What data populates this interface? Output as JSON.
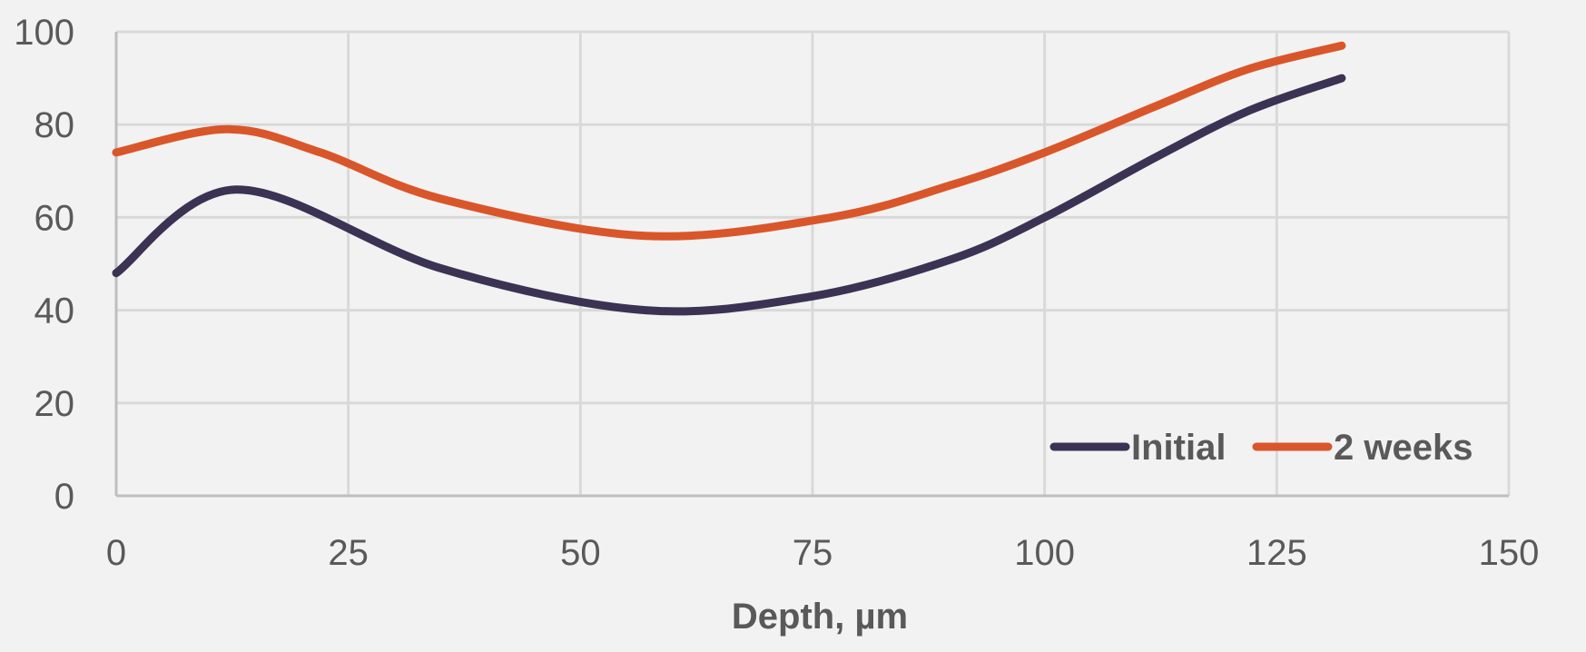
{
  "chart_data": {
    "type": "line",
    "title": "",
    "xlabel": "Depth, µm",
    "ylabel": "",
    "xlim": [
      0,
      150
    ],
    "ylim": [
      0,
      100
    ],
    "x_ticks": [
      0,
      25,
      50,
      75,
      100,
      125,
      150
    ],
    "y_ticks": [
      0,
      20,
      40,
      60,
      80,
      100
    ],
    "grid": true,
    "legend_position": "bottom-right",
    "smooth": true,
    "series": [
      {
        "name": "Initial",
        "color": "#3b3254",
        "x": [
          0,
          13,
          35,
          57,
          75,
          90,
          100,
          112,
          122,
          132
        ],
        "y": [
          48,
          66,
          49,
          40,
          43,
          51,
          60,
          73,
          83,
          90
        ]
      },
      {
        "name": "2 weeks",
        "color": "#d9562b",
        "x": [
          0,
          12,
          22,
          35,
          57,
          77,
          90,
          100,
          112,
          122,
          132
        ],
        "y": [
          74,
          79,
          74,
          64,
          56,
          60,
          67,
          74,
          84,
          92,
          97
        ]
      }
    ]
  }
}
